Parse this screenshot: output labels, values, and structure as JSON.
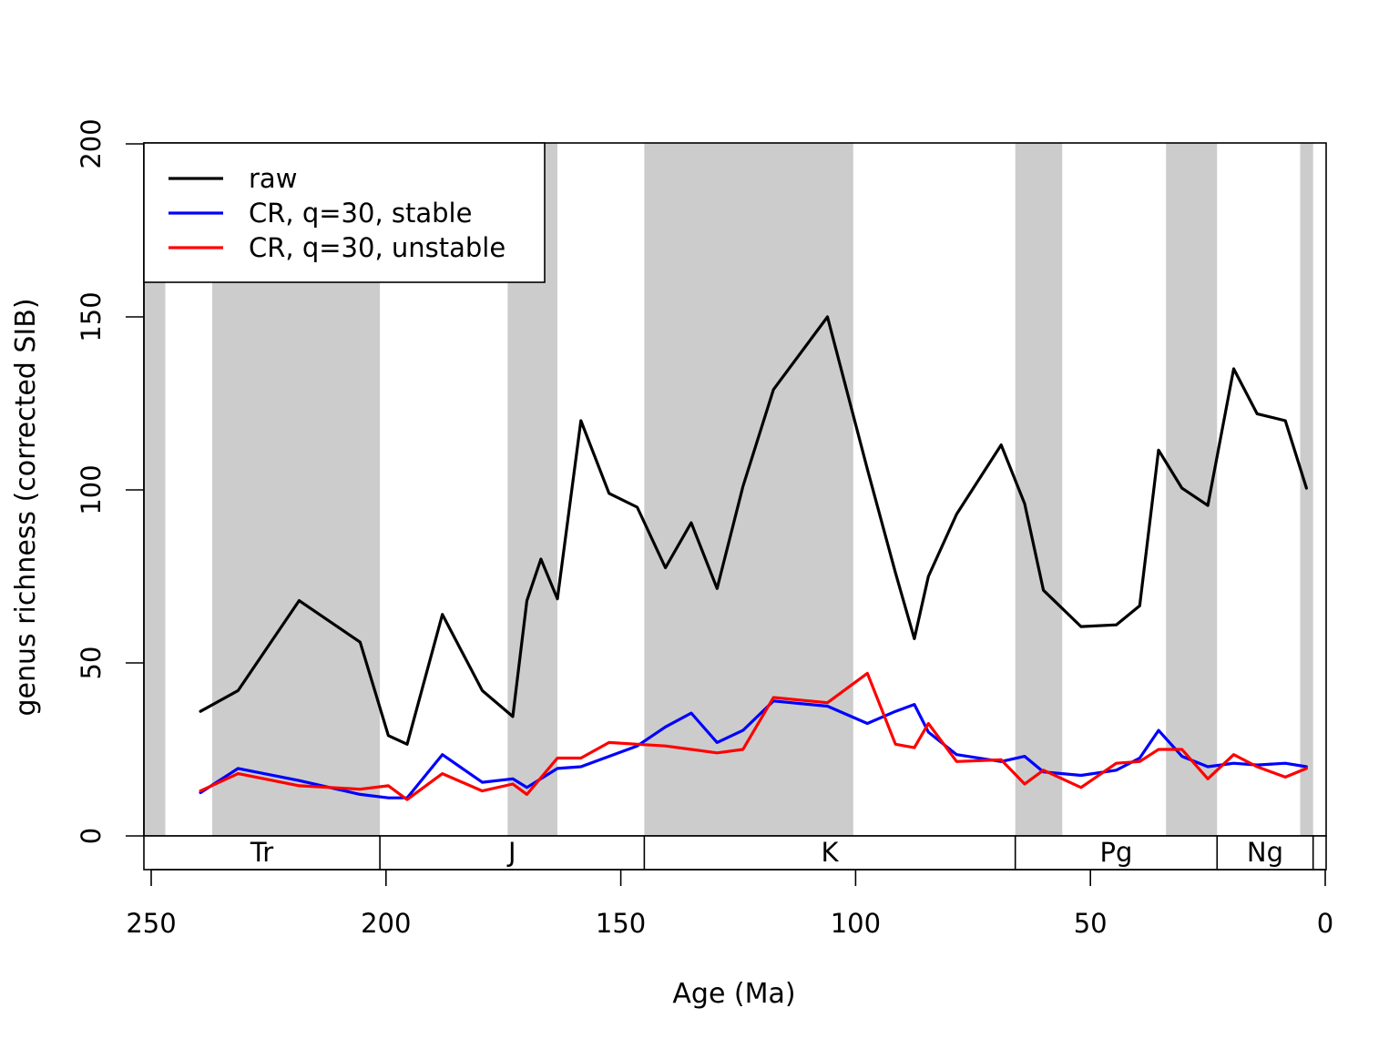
{
  "chart_data": {
    "type": "line",
    "xlabel": "Age (Ma)",
    "ylabel": "genus richness (corrected SIB)",
    "xlim": [
      252,
      0
    ],
    "ylim": [
      0,
      200
    ],
    "x_ticks": [
      250,
      200,
      150,
      100,
      50,
      0
    ],
    "y_ticks": [
      0,
      50,
      100,
      150,
      200
    ],
    "x_axis_reversed": true,
    "grid": false,
    "legend_position": "top-left",
    "shaded_intervals": [
      [
        252,
        247
      ],
      [
        237,
        201.3
      ],
      [
        174.1,
        163.5
      ],
      [
        145,
        100.5
      ],
      [
        66,
        56
      ],
      [
        33.9,
        23.03
      ],
      [
        5.33,
        2.58
      ]
    ],
    "periods": [
      {
        "label": "Tr",
        "start": 252,
        "end": 201.3
      },
      {
        "label": "J",
        "start": 201.3,
        "end": 145
      },
      {
        "label": "K",
        "start": 145,
        "end": 66
      },
      {
        "label": "Pg",
        "start": 66,
        "end": 23.03
      },
      {
        "label": "Ng",
        "start": 23.03,
        "end": 2.58
      },
      {
        "label": "",
        "start": 2.58,
        "end": 0
      }
    ],
    "series": [
      {
        "name": "raw",
        "color": "#000000",
        "x": [
          239.5,
          231.5,
          218.5,
          205.5,
          199.5,
          195.5,
          188,
          179.5,
          173,
          170,
          167,
          163.5,
          158.5,
          152.5,
          146.5,
          140.5,
          135,
          129.5,
          124,
          117.5,
          106,
          97.5,
          91.5,
          87.5,
          84.5,
          78.5,
          69,
          64,
          60,
          52,
          44.5,
          39.5,
          35.5,
          30.5,
          25,
          19.5,
          14.5,
          8.5,
          4
        ],
        "values": [
          36,
          42,
          68,
          56,
          29,
          26.5,
          64,
          42,
          34.5,
          68,
          80,
          68.5,
          120,
          99,
          95,
          77.5,
          90.5,
          71.5,
          101,
          129,
          150,
          106,
          76,
          57,
          75,
          93,
          113,
          96,
          71,
          60.5,
          61,
          66.5,
          111.5,
          100.5,
          95.5,
          135,
          122,
          120,
          100.5
        ]
      },
      {
        "name": "CR, q=30, stable",
        "color": "#0000ff",
        "x": [
          239.5,
          231.5,
          218.5,
          205.5,
          199.5,
          195.5,
          188,
          179.5,
          173,
          170,
          163.5,
          158.5,
          152.5,
          146.5,
          140.5,
          135,
          129.5,
          124,
          117.5,
          106,
          97.5,
          91.5,
          87.5,
          84.5,
          78.5,
          69,
          64,
          60,
          52,
          44.5,
          39.5,
          35.5,
          30.5,
          25,
          19.5,
          14.5,
          8.5,
          4
        ],
        "values": [
          12.5,
          19.5,
          16,
          12,
          11,
          11,
          23.5,
          15.5,
          16.5,
          14,
          19.5,
          20,
          23,
          26,
          31.5,
          35.5,
          27,
          30.5,
          39,
          37.5,
          32.5,
          36,
          38,
          30,
          23.5,
          21.5,
          23,
          18.5,
          17.5,
          19,
          22.5,
          30.5,
          23,
          20,
          21,
          20.5,
          21,
          20
        ]
      },
      {
        "name": "CR, q=30, unstable",
        "color": "#ff0000",
        "x": [
          239.5,
          231.5,
          218.5,
          205.5,
          199.5,
          195.5,
          188,
          179.5,
          173,
          170,
          163.5,
          158.5,
          152.5,
          146.5,
          140.5,
          135,
          129.5,
          124,
          117.5,
          106,
          97.5,
          91.5,
          87.5,
          84.5,
          78.5,
          69,
          64,
          60,
          52,
          44.5,
          39.5,
          35.5,
          30.5,
          25,
          19.5,
          14.5,
          8.5,
          4
        ],
        "values": [
          13,
          18,
          14.5,
          13.5,
          14.5,
          10.5,
          18,
          13,
          15,
          12,
          22.5,
          22.5,
          27,
          26.5,
          26,
          25,
          24,
          25,
          40,
          38.5,
          47,
          26.5,
          25.5,
          32.5,
          21.5,
          22,
          15,
          19,
          14,
          21,
          21.5,
          25,
          25,
          16.5,
          23.5,
          20,
          17,
          19.5
        ]
      }
    ]
  }
}
